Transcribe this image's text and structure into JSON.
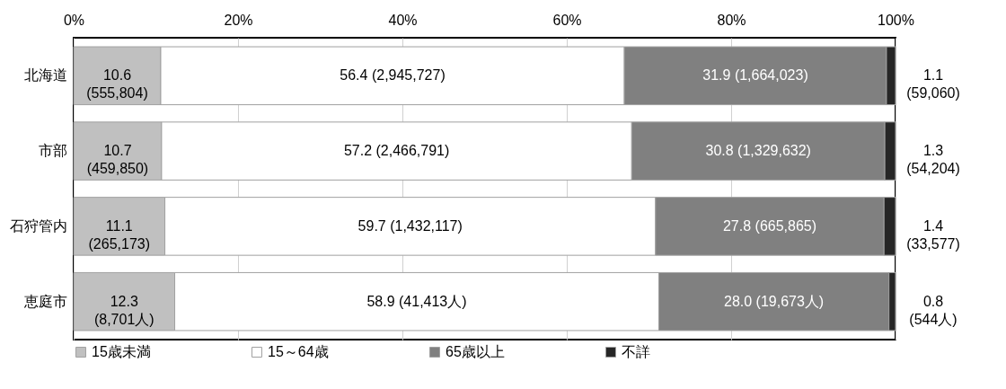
{
  "chart_data": {
    "type": "bar",
    "orientation": "horizontal",
    "stacked": true,
    "categories": [
      "北海道",
      "市部",
      "石狩管内",
      "恵庭市"
    ],
    "series": [
      {
        "name": "15歳未満",
        "color": "#c0c0c0",
        "values": [
          10.6,
          10.7,
          11.1,
          12.3
        ],
        "value_labels": [
          "10.6\n(555,804)",
          "10.7\n(459,850)",
          "11.1\n(265,173)",
          "12.3\n(8,701人)"
        ]
      },
      {
        "name": "15～64歳",
        "color": "#ffffff",
        "values": [
          56.4,
          57.2,
          59.7,
          58.9
        ],
        "value_labels": [
          "56.4 (2,945,727)",
          "57.2 (2,466,791)",
          "59.7 (1,432,117)",
          "58.9 (41,413人)"
        ]
      },
      {
        "name": "65歳以上",
        "color": "#808080",
        "values": [
          31.9,
          30.8,
          27.8,
          28.0
        ],
        "value_labels": [
          "31.9 (1,664,023)",
          "30.8 (1,329,632)",
          "27.8 (665,865)",
          "28.0 (19,673人)"
        ]
      },
      {
        "name": "不詳",
        "color": "#262626",
        "values": [
          1.1,
          1.3,
          1.4,
          0.8
        ],
        "value_labels": [
          "1.1\n(59,060)",
          "1.3\n(54,204)",
          "1.4\n(33,577)",
          "0.8\n(544人)"
        ]
      }
    ],
    "xlim": [
      0,
      100
    ],
    "xticks": [
      {
        "value": 0,
        "label": "0%"
      },
      {
        "value": 20,
        "label": "20%"
      },
      {
        "value": 40,
        "label": "40%"
      },
      {
        "value": 60,
        "label": "60%"
      },
      {
        "value": 80,
        "label": "80%"
      },
      {
        "value": 100,
        "label": "100%"
      }
    ],
    "grid": "x",
    "legend": "bottom"
  }
}
